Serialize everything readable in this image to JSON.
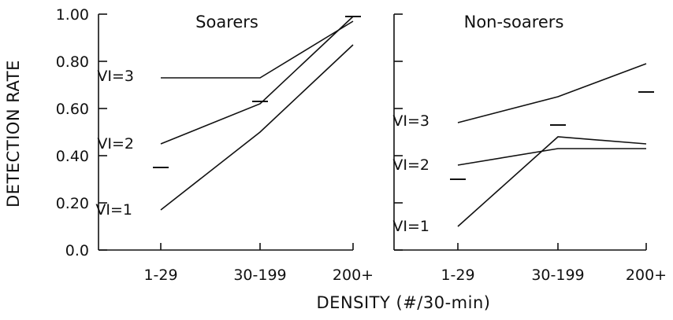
{
  "chart_data": {
    "type": "line",
    "ylabel": "DETECTION RATE",
    "xlabel": "DENSITY (#/30-min)",
    "ylim": [
      0,
      1
    ],
    "yticks": [
      "0.0",
      "0.20",
      "0.40",
      "0.60",
      "0.80",
      "1.00"
    ],
    "categories": [
      "1-29",
      "30-199",
      "200+"
    ],
    "panels": [
      {
        "title": "Soarers",
        "series": [
          {
            "name": "VI=3",
            "values": [
              0.73,
              0.73,
              0.97
            ]
          },
          {
            "name": "VI=2",
            "values": [
              0.45,
              0.62,
              0.99
            ]
          },
          {
            "name": "VI=1",
            "values": [
              0.17,
              0.5,
              0.87
            ]
          }
        ],
        "observed": [
          0.35,
          0.63,
          0.99
        ]
      },
      {
        "title": "Non-soarers",
        "series": [
          {
            "name": "VI=3",
            "values": [
              0.54,
              0.65,
              0.79
            ]
          },
          {
            "name": "VI=2",
            "values": [
              0.36,
              0.43,
              0.43
            ]
          },
          {
            "name": "VI=1",
            "values": [
              0.1,
              0.48,
              0.45
            ]
          }
        ],
        "observed": [
          0.3,
          0.53,
          0.67
        ]
      }
    ]
  }
}
